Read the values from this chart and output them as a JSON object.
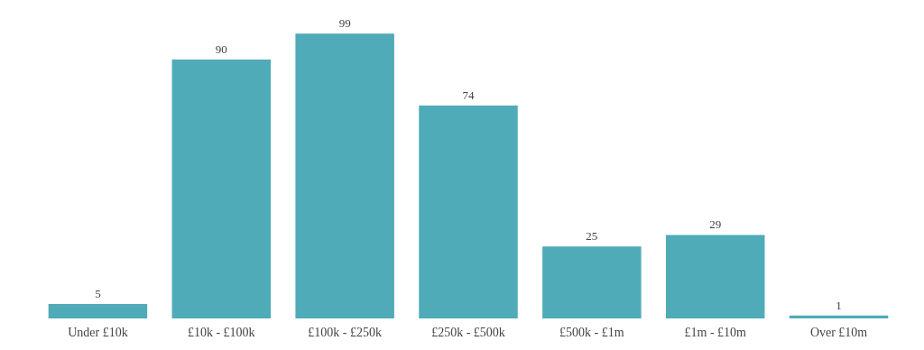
{
  "chart_data": {
    "type": "bar",
    "categories": [
      "Under £10k",
      "£10k - £100k",
      "£100k - £250k",
      "£250k - £500k",
      "£500k - £1m",
      "£1m - £10m",
      "Over £10m"
    ],
    "values": [
      5,
      90,
      99,
      74,
      25,
      29,
      1
    ],
    "color": "#4fabb7",
    "data_labels": true
  }
}
